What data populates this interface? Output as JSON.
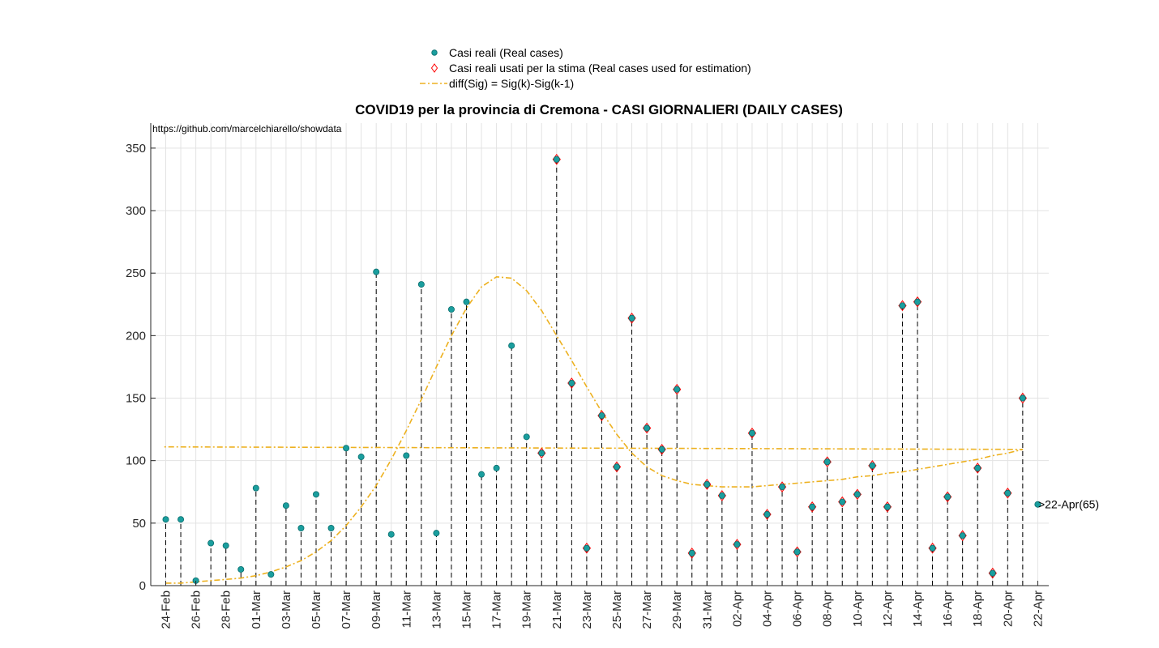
{
  "chart_data": {
    "type": "scatter",
    "title": "COVID19 per la provincia di Cremona - CASI GIORNALIERI (DAILY CASES)",
    "xlabel": "",
    "ylabel": "",
    "ylim": [
      0,
      370
    ],
    "yticks": [
      0,
      50,
      100,
      150,
      200,
      250,
      300,
      350
    ],
    "grid": true,
    "legend_position": "top-center",
    "dates": [
      "24-Feb",
      "25-Feb",
      "26-Feb",
      "27-Feb",
      "28-Feb",
      "29-Feb",
      "01-Mar",
      "02-Mar",
      "03-Mar",
      "04-Mar",
      "05-Mar",
      "06-Mar",
      "07-Mar",
      "08-Mar",
      "09-Mar",
      "10-Mar",
      "11-Mar",
      "12-Mar",
      "13-Mar",
      "14-Mar",
      "15-Mar",
      "16-Mar",
      "17-Mar",
      "18-Mar",
      "19-Mar",
      "20-Mar",
      "21-Mar",
      "22-Mar",
      "23-Mar",
      "24-Mar",
      "25-Mar",
      "26-Mar",
      "27-Mar",
      "28-Mar",
      "29-Mar",
      "30-Mar",
      "31-Mar",
      "01-Apr",
      "02-Apr",
      "03-Apr",
      "04-Apr",
      "05-Apr",
      "06-Apr",
      "07-Apr",
      "08-Apr",
      "09-Apr",
      "10-Apr",
      "11-Apr",
      "12-Apr",
      "13-Apr",
      "14-Apr",
      "15-Apr",
      "16-Apr",
      "17-Apr",
      "18-Apr",
      "19-Apr",
      "20-Apr",
      "21-Apr",
      "22-Apr"
    ],
    "x_tick_labels": [
      "24-Feb",
      "26-Feb",
      "28-Feb",
      "01-Mar",
      "03-Mar",
      "05-Mar",
      "07-Mar",
      "09-Mar",
      "11-Mar",
      "13-Mar",
      "15-Mar",
      "17-Mar",
      "19-Mar",
      "21-Mar",
      "23-Mar",
      "25-Mar",
      "27-Mar",
      "29-Mar",
      "31-Mar",
      "02-Apr",
      "04-Apr",
      "06-Apr",
      "08-Apr",
      "10-Apr",
      "12-Apr",
      "14-Apr",
      "16-Apr",
      "18-Apr",
      "20-Apr",
      "22-Apr"
    ],
    "series": [
      {
        "name": "Casi reali (Real cases)",
        "marker": "circle",
        "color": "#1a9e9e",
        "values": [
          53,
          53,
          4,
          34,
          32,
          13,
          78,
          9,
          64,
          46,
          73,
          46,
          110,
          103,
          251,
          41,
          104,
          241,
          42,
          221,
          227,
          89,
          94,
          192,
          119,
          106,
          341,
          162,
          30,
          136,
          95,
          214,
          126,
          109,
          157,
          26,
          81,
          72,
          33,
          122,
          57,
          79,
          27,
          63,
          99,
          67,
          73,
          96,
          63,
          224,
          227,
          30,
          71,
          40,
          94,
          10,
          74,
          150,
          65
        ]
      },
      {
        "name": "Casi reali usati per la stima (Real cases used for estimation)",
        "marker": "diamond",
        "color": "#ff0000",
        "start_date": "20-Mar",
        "end_date": "21-Apr"
      },
      {
        "name": "diff(Sig) = Sig(k)-Sig(k-1)",
        "marker": "dash-dot line",
        "color": "#EDB120",
        "x_end": "23-Apr",
        "values": [
          2,
          2,
          3,
          4,
          5,
          6,
          8,
          11,
          15,
          20,
          27,
          36,
          48,
          63,
          80,
          101,
          124,
          149,
          175,
          200,
          222,
          239,
          247,
          246,
          236,
          220,
          200,
          180,
          159,
          139,
          121,
          106,
          95,
          88,
          84,
          81,
          80,
          79,
          79,
          79,
          80,
          81,
          82,
          83,
          84,
          85,
          87,
          88,
          90,
          91,
          93,
          95,
          97,
          99,
          101,
          104,
          106,
          109
        ]
      }
    ],
    "annotations": [
      {
        "text": "https://github.com/marcelchiarello/showdata"
      },
      {
        "text": ">22-Apr(65)",
        "date": "22-Apr",
        "value": 65
      }
    ]
  }
}
